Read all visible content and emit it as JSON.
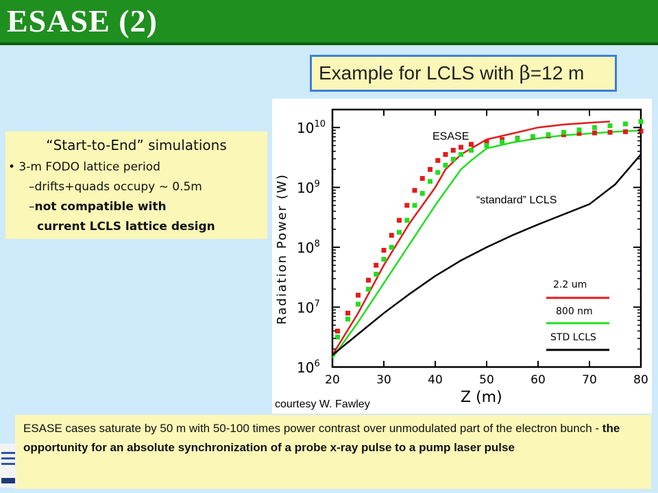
{
  "slide": {
    "title": "ESASE (2)",
    "header_text": "Example for LCLS with ",
    "header_beta": "β",
    "header_suffix": "=12 m"
  },
  "simulation_box": {
    "title": "“Start-to-End” simulations",
    "bullet": "• 3-m FODO lattice period",
    "sub1": "–drifts+quads occupy ~ 0.5m",
    "sub2_dash": "–",
    "sub2_bold": "not compatible with",
    "sub3_bold": "current LCLS lattice design"
  },
  "bottom_box": {
    "plain": "ESASE cases saturate by 50 m with 50-100 times power contrast over unmodulated part of the electron bunch - ",
    "bold": "the opportunity for an absolute synchronization of a probe x-ray pulse to a pump laser pulse"
  },
  "colors": {
    "title_bg": "#1f8f1f",
    "box_yellow": "#fbf7b7",
    "header_border": "#3b7fd9",
    "red": "#e21b1b",
    "green": "#22dd22",
    "black": "#000000"
  },
  "chart_data": {
    "type": "line",
    "ylabel": "Radiation Power (W)",
    "xlabel": "Z (m)",
    "xlim": [
      20,
      80
    ],
    "ylim_log10": [
      6,
      10.3
    ],
    "x_ticks": [
      "20",
      "30",
      "40",
      "50",
      "60",
      "70",
      "80"
    ],
    "y_ticks": [
      {
        "exp": 10,
        "label_base": "10",
        "label_exp": "10"
      },
      {
        "exp": 9,
        "label_base": "10",
        "label_exp": "9"
      },
      {
        "exp": 8,
        "label_base": "10",
        "label_exp": "8"
      },
      {
        "exp": 7,
        "label_base": "10",
        "label_exp": "7"
      },
      {
        "exp": 6,
        "label_base": "10",
        "label_exp": "6"
      }
    ],
    "annotations": {
      "esase": "ESASE",
      "standard": "“standard” LCLS",
      "courtesy": "courtesy W. Fawley"
    },
    "legend": [
      "2.2 um",
      "800 nm",
      "STD LCLS"
    ],
    "series": [
      {
        "name": "2.2 um",
        "color": "#e21b1b",
        "style": "solid",
        "x": [
          20,
          25,
          30,
          35,
          40,
          42,
          45,
          50,
          55,
          60,
          65,
          70,
          74
        ],
        "log10y": [
          6.2,
          6.9,
          7.7,
          8.4,
          9.0,
          9.3,
          9.55,
          9.8,
          9.9,
          10.0,
          10.05,
          10.08,
          10.1
        ]
      },
      {
        "name": "800 nm",
        "color": "#22dd22",
        "style": "solid",
        "x": [
          20,
          25,
          30,
          35,
          40,
          45,
          47,
          50,
          55,
          60,
          65,
          70,
          75,
          80
        ],
        "log10y": [
          6.15,
          6.75,
          7.4,
          8.05,
          8.7,
          9.3,
          9.45,
          9.65,
          9.75,
          9.82,
          9.87,
          9.9,
          9.93,
          9.95
        ]
      },
      {
        "name": "STD LCLS",
        "color": "#000000",
        "style": "solid",
        "x": [
          20,
          25,
          30,
          35,
          40,
          45,
          50,
          55,
          60,
          65,
          70,
          75,
          80
        ],
        "log10y": [
          6.2,
          6.55,
          6.9,
          7.22,
          7.52,
          7.78,
          8.0,
          8.2,
          8.38,
          8.55,
          8.72,
          9.05,
          9.55
        ]
      },
      {
        "name": "2.2 um",
        "color": "#e21b1b",
        "style": "dotted",
        "x": [
          21,
          23,
          25,
          27,
          28.5,
          30,
          31.5,
          33,
          34.5,
          36,
          37.5,
          39,
          40.5,
          42,
          43.5,
          45,
          47,
          50,
          53,
          56,
          59,
          62,
          65,
          68,
          71,
          74,
          77,
          80
        ],
        "log10y": [
          6.6,
          6.9,
          7.2,
          7.45,
          7.7,
          7.95,
          8.2,
          8.45,
          8.7,
          8.95,
          9.15,
          9.3,
          9.45,
          9.55,
          9.62,
          9.67,
          9.72,
          9.76,
          9.8,
          9.82,
          9.84,
          9.86,
          9.88,
          9.9,
          9.91,
          9.92,
          9.93,
          9.94
        ]
      },
      {
        "name": "800 nm",
        "color": "#22dd22",
        "style": "dotted",
        "x": [
          21,
          23,
          25,
          27,
          28.5,
          30,
          31.5,
          33,
          34.5,
          36,
          37.5,
          39,
          40.5,
          42,
          43.5,
          45,
          47,
          50,
          53,
          56,
          59,
          62,
          65,
          68,
          71,
          74,
          77,
          80
        ],
        "log10y": [
          6.5,
          6.8,
          7.05,
          7.3,
          7.55,
          7.8,
          8.0,
          8.25,
          8.45,
          8.7,
          8.9,
          9.1,
          9.25,
          9.37,
          9.47,
          9.55,
          9.62,
          9.7,
          9.76,
          9.81,
          9.85,
          9.88,
          9.92,
          9.96,
          10.0,
          10.03,
          10.06,
          10.1
        ]
      }
    ]
  }
}
